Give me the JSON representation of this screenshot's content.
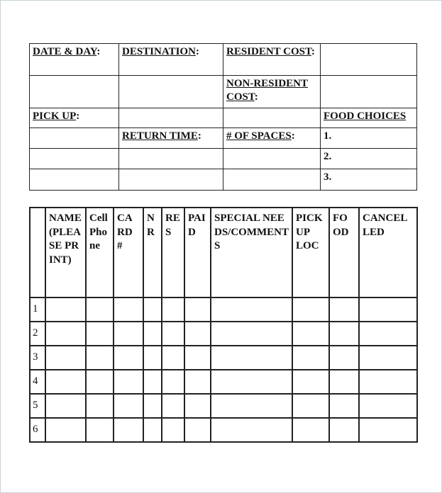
{
  "trip_info": {
    "date_day": "DATE & DAY",
    "destination": "DESTINATION",
    "resident_cost": "RESIDENT COST",
    "non_resident_cost": "NON-RESIDENT COST",
    "pick_up": "PICK UP",
    "food_choices": "FOOD CHOICES",
    "return_time": "RETURN TIME",
    "spaces": "# OF SPACES",
    "food_items": [
      "1.",
      "2.",
      "3."
    ]
  },
  "roster": {
    "headers": [
      "",
      "NAME (PLEASE PRINT)",
      "Cell Phone",
      "CARD #",
      "NR",
      "RES",
      "PAID",
      "SPECIAL NEEDS/COMMENTS",
      "PICK UP LOC",
      "FOOD",
      "CANCELLED"
    ],
    "row_numbers": [
      "1",
      "2",
      "3",
      "4",
      "5",
      "6"
    ]
  }
}
